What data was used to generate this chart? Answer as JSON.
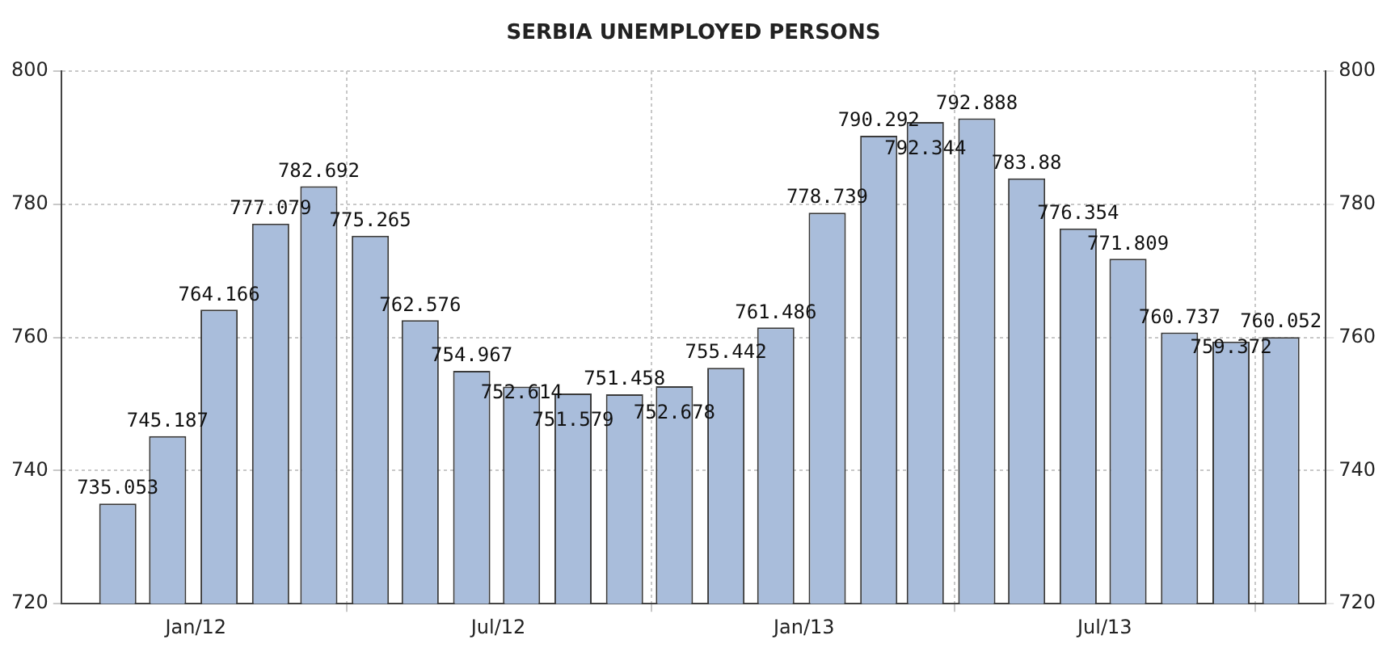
{
  "chart_data": {
    "type": "bar",
    "title": "SERBIA UNEMPLOYED PERSONS",
    "x": [
      "2011-11-15",
      "2011-12-15",
      "2012-01-15",
      "2012-02-15",
      "2012-03-15",
      "2012-04-15",
      "2012-05-15",
      "2012-06-15",
      "2012-07-15",
      "2012-08-15",
      "2012-09-15",
      "2012-10-15",
      "2012-11-15",
      "2012-12-15",
      "2013-01-15",
      "2013-02-15",
      "2013-03-15",
      "2013-04-15",
      "2013-05-15",
      "2013-06-15",
      "2013-07-15",
      "2013-08-15",
      "2013-09-15",
      "2013-10-15"
    ],
    "values": [
      735.053,
      745.187,
      764.166,
      777.079,
      782.692,
      775.265,
      762.576,
      754.967,
      752.614,
      751.579,
      751.458,
      752.678,
      755.442,
      761.486,
      778.739,
      790.292,
      792.344,
      792.888,
      783.88,
      776.354,
      771.809,
      760.737,
      759.372,
      760.052
    ],
    "color": "#a9bddb",
    "xlim": [
      "2011-10-12",
      "2013-11-11"
    ],
    "xticks": [
      {
        "value": "2012-01",
        "label": "Jan/12"
      },
      {
        "value": "2012-07",
        "label": "Jul/12"
      },
      {
        "value": "2013-01",
        "label": "Jan/13"
      },
      {
        "value": "2013-07",
        "label": "Jul/13"
      }
    ],
    "ylim": [
      720,
      800
    ],
    "yticks": [
      720,
      740,
      760,
      780,
      800
    ],
    "y2lim": [
      720,
      800
    ],
    "y2ticks": [
      720,
      740,
      760,
      780,
      800
    ],
    "grid": true,
    "data_labels": true,
    "legend": false
  }
}
